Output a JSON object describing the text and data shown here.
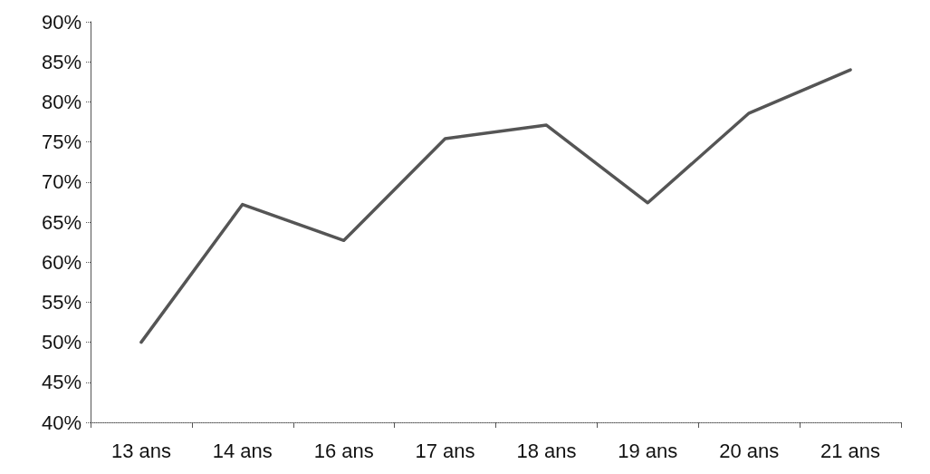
{
  "chart_data": {
    "type": "line",
    "categories": [
      "13 ans",
      "14 ans",
      "16 ans",
      "17 ans",
      "18 ans",
      "19 ans",
      "20 ans",
      "21 ans"
    ],
    "series": [
      {
        "color": "#555555",
        "values": [
          50,
          67.2,
          62.7,
          75.4,
          77.1,
          67.4,
          78.6,
          84
        ]
      }
    ],
    "ylim": [
      40,
      90
    ],
    "yticks": [
      {
        "value": 40,
        "label": "40%"
      },
      {
        "value": 45,
        "label": "45%"
      },
      {
        "value": 50,
        "label": "50%"
      },
      {
        "value": 55,
        "label": "55%"
      },
      {
        "value": 60,
        "label": "60%"
      },
      {
        "value": 65,
        "label": "65%"
      },
      {
        "value": 70,
        "label": "70%"
      },
      {
        "value": 75,
        "label": "75%"
      },
      {
        "value": 80,
        "label": "80%"
      },
      {
        "value": 85,
        "label": "85%"
      },
      {
        "value": 90,
        "label": "90%"
      }
    ],
    "marker": "none",
    "line_style": "solid"
  }
}
